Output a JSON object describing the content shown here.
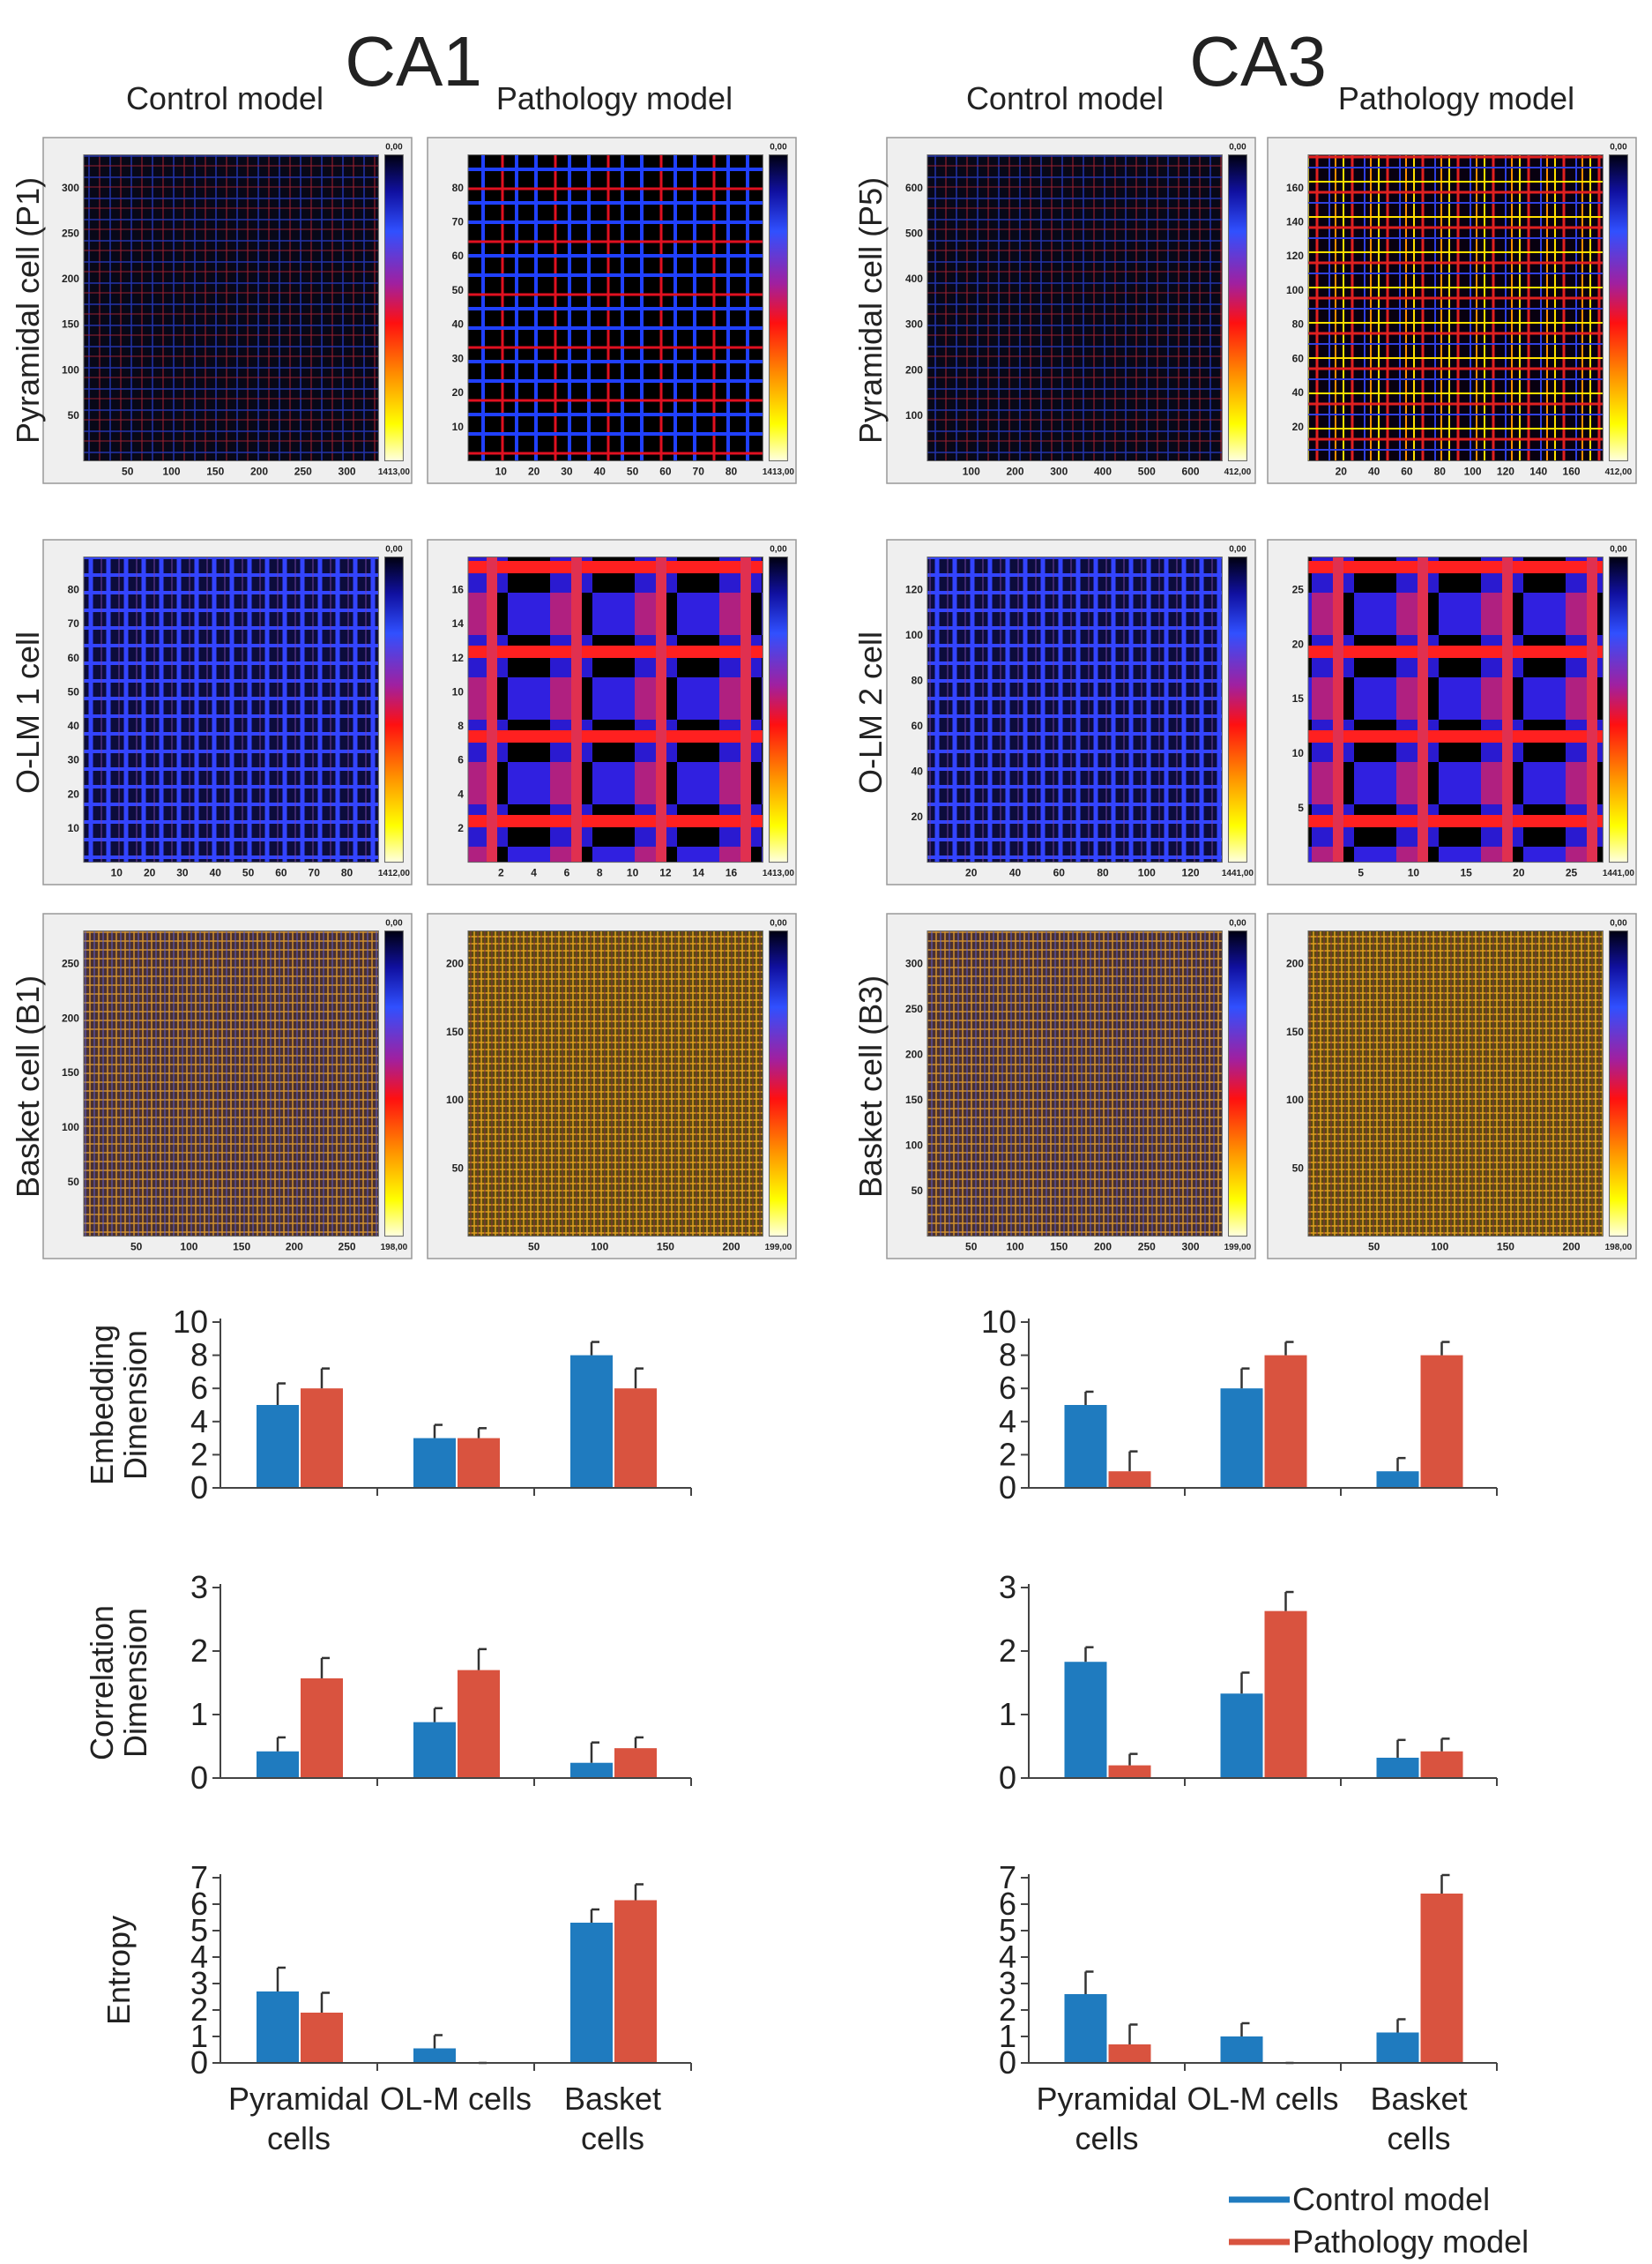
{
  "figure": {
    "regions": [
      {
        "title": "CA1",
        "columns": [
          "Control model",
          "Pathology model"
        ],
        "rows": [
          "Pyramidal cell (P1)",
          "O-LM 1 cell",
          "Basket cell (B1)"
        ],
        "panels": [
          [
            {
              "xticks": [
                50,
                100,
                150,
                200,
                250,
                300
              ],
              "yticks": [
                50,
                100,
                150,
                200,
                250,
                300
              ],
              "colorbar": [
                "0,00",
                "1413,00"
              ]
            },
            {
              "xticks": [
                10,
                20,
                30,
                40,
                50,
                60,
                70,
                80
              ],
              "yticks": [
                10,
                20,
                30,
                40,
                50,
                60,
                70,
                80
              ],
              "colorbar": [
                "0,00",
                "1413,00"
              ]
            }
          ],
          [
            {
              "xticks": [
                10,
                20,
                30,
                40,
                50,
                60,
                70,
                80
              ],
              "yticks": [
                10,
                20,
                30,
                40,
                50,
                60,
                70,
                80
              ],
              "colorbar": [
                "0,00",
                "1412,00"
              ]
            },
            {
              "xticks": [
                2,
                4,
                6,
                8,
                10,
                12,
                14,
                16
              ],
              "yticks": [
                2,
                4,
                6,
                8,
                10,
                12,
                14,
                16
              ],
              "colorbar": [
                "0,00",
                "1413,00"
              ]
            }
          ],
          [
            {
              "xticks": [
                50,
                100,
                150,
                200,
                250
              ],
              "yticks": [
                50,
                100,
                150,
                200,
                250
              ],
              "colorbar": [
                "0,00",
                "198,00"
              ]
            },
            {
              "xticks": [
                50,
                100,
                150,
                200
              ],
              "yticks": [
                50,
                100,
                150,
                200
              ],
              "colorbar": [
                "0,00",
                "199,00"
              ]
            }
          ]
        ]
      },
      {
        "title": "CA3",
        "columns": [
          "Control model",
          "Pathology model"
        ],
        "rows": [
          "Pyramidal cell (P5)",
          "O-LM 2 cell",
          "Basket cell (B3)"
        ],
        "panels": [
          [
            {
              "xticks": [
                100,
                200,
                300,
                400,
                500,
                600
              ],
              "yticks": [
                100,
                200,
                300,
                400,
                500,
                600
              ],
              "colorbar": [
                "0,00",
                "412,00"
              ]
            },
            {
              "xticks": [
                20,
                40,
                60,
                80,
                100,
                120,
                140,
                160
              ],
              "yticks": [
                20,
                40,
                60,
                80,
                100,
                120,
                140,
                160
              ],
              "colorbar": [
                "0,00",
                "412,00"
              ]
            }
          ],
          [
            {
              "xticks": [
                20,
                40,
                60,
                80,
                100,
                120
              ],
              "yticks": [
                20,
                40,
                60,
                80,
                100,
                120
              ],
              "colorbar": [
                "0,00",
                "1441,00"
              ]
            },
            {
              "xticks": [
                5,
                10,
                15,
                20,
                25
              ],
              "yticks": [
                5,
                10,
                15,
                20,
                25
              ],
              "colorbar": [
                "0,00",
                "1441,00"
              ]
            }
          ],
          [
            {
              "xticks": [
                50,
                100,
                150,
                200,
                250,
                300
              ],
              "yticks": [
                50,
                100,
                150,
                200,
                250,
                300
              ],
              "colorbar": [
                "0,00",
                "199,00"
              ]
            },
            {
              "xticks": [
                50,
                100,
                150,
                200
              ],
              "yticks": [
                50,
                100,
                150,
                200
              ],
              "colorbar": [
                "0,00",
                "198,00"
              ]
            }
          ]
        ]
      }
    ]
  },
  "chart_data": [
    {
      "type": "bar",
      "ylabel": "Embedding Dimension",
      "ylim": [
        0,
        10
      ],
      "yticks": [
        0,
        2,
        4,
        6,
        8,
        10
      ],
      "series": [
        {
          "color": "#1f7bbf",
          "values": [
            5,
            3,
            8
          ],
          "errors": [
            1.3,
            0.8,
            0.8
          ]
        },
        {
          "color": "#d9533f",
          "values": [
            6,
            3,
            6
          ],
          "errors": [
            1.2,
            0.6,
            1.2
          ]
        }
      ]
    },
    {
      "type": "bar",
      "ylim": [
        0,
        10
      ],
      "yticks": [
        0,
        2,
        4,
        6,
        8,
        10
      ],
      "series": [
        {
          "color": "#1f7bbf",
          "values": [
            5,
            6,
            1
          ],
          "errors": [
            0.8,
            1.2,
            0.8
          ]
        },
        {
          "color": "#d9533f",
          "values": [
            1,
            8,
            8
          ],
          "errors": [
            1.2,
            0.8,
            0.8
          ]
        }
      ]
    },
    {
      "type": "bar",
      "ylabel": "Correlation Dimension",
      "ylim": [
        0,
        3
      ],
      "yticks": [
        0,
        1,
        2,
        3
      ],
      "series": [
        {
          "color": "#1f7bbf",
          "values": [
            0.42,
            0.88,
            0.24
          ],
          "errors": [
            0.22,
            0.22,
            0.32
          ]
        },
        {
          "color": "#d9533f",
          "values": [
            1.57,
            1.7,
            0.47
          ],
          "errors": [
            0.32,
            0.33,
            0.17
          ]
        }
      ]
    },
    {
      "type": "bar",
      "ylim": [
        0,
        3
      ],
      "yticks": [
        0,
        1,
        2,
        3
      ],
      "series": [
        {
          "color": "#1f7bbf",
          "values": [
            1.83,
            1.33,
            0.32
          ],
          "errors": [
            0.23,
            0.33,
            0.28
          ]
        },
        {
          "color": "#d9533f",
          "values": [
            0.2,
            2.63,
            0.42
          ],
          "errors": [
            0.18,
            0.3,
            0.2
          ]
        }
      ]
    },
    {
      "type": "bar",
      "ylabel": "Entropy",
      "ylim": [
        0,
        7
      ],
      "yticks": [
        0,
        1,
        2,
        3,
        4,
        5,
        6,
        7
      ],
      "categories": [
        "Pyramidal cells",
        "OL-M cells",
        "Basket cells"
      ],
      "series": [
        {
          "color": "#1f7bbf",
          "values": [
            2.7,
            0.55,
            5.3
          ],
          "errors": [
            0.9,
            0.5,
            0.5
          ]
        },
        {
          "color": "#d9533f",
          "values": [
            1.9,
            0,
            6.15
          ],
          "errors": [
            0.75,
            0,
            0.6
          ]
        }
      ]
    },
    {
      "type": "bar",
      "ylim": [
        0,
        7
      ],
      "yticks": [
        0,
        1,
        2,
        3,
        4,
        5,
        6,
        7
      ],
      "categories": [
        "Pyramidal cells",
        "OL-M cells",
        "Basket cells"
      ],
      "series": [
        {
          "name": "Control model",
          "color": "#1f7bbf",
          "values": [
            2.6,
            1,
            1.15
          ],
          "errors": [
            0.85,
            0.5,
            0.5
          ]
        },
        {
          "name": "Pathology model",
          "color": "#d9533f",
          "values": [
            0.7,
            0,
            6.4
          ],
          "errors": [
            0.75,
            0,
            0.7
          ]
        }
      ]
    }
  ]
}
